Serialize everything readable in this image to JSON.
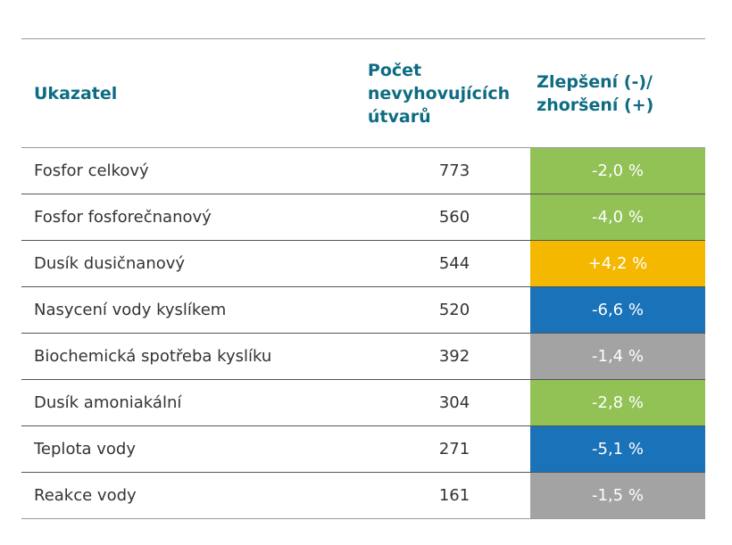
{
  "chart_data": {
    "type": "table",
    "columns": [
      "Ukazatel",
      "Počet\nnevyhovujících\nútvarů",
      "Zlepšení (-)/\nzhoršení (+)"
    ],
    "rows": [
      {
        "name": "Fosfor celkový",
        "count": "773",
        "change": "-2,0 %",
        "color": "#92c155"
      },
      {
        "name": "Fosfor fosforečnanový",
        "count": "560",
        "change": "-4,0 %",
        "color": "#92c155"
      },
      {
        "name": "Dusík dusičnanový",
        "count": "544",
        "change": "+4,2 %",
        "color": "#f5b800"
      },
      {
        "name": "Nasycení vody kyslíkem",
        "count": "520",
        "change": "-6,6 %",
        "color": "#1a72b8"
      },
      {
        "name": "Biochemická spotřeba kyslíku",
        "count": "392",
        "change": "-1,4 %",
        "color": "#a3a3a3"
      },
      {
        "name": "Dusík amoniakální",
        "count": "304",
        "change": "-2,8 %",
        "color": "#92c155"
      },
      {
        "name": "Teplota vody",
        "count": "271",
        "change": "-5,1 %",
        "color": "#1a72b8"
      },
      {
        "name": "Reakce vody",
        "count": "161",
        "change": "-1,5 %",
        "color": "#a3a3a3"
      }
    ],
    "header_color": "#0e6c82"
  }
}
